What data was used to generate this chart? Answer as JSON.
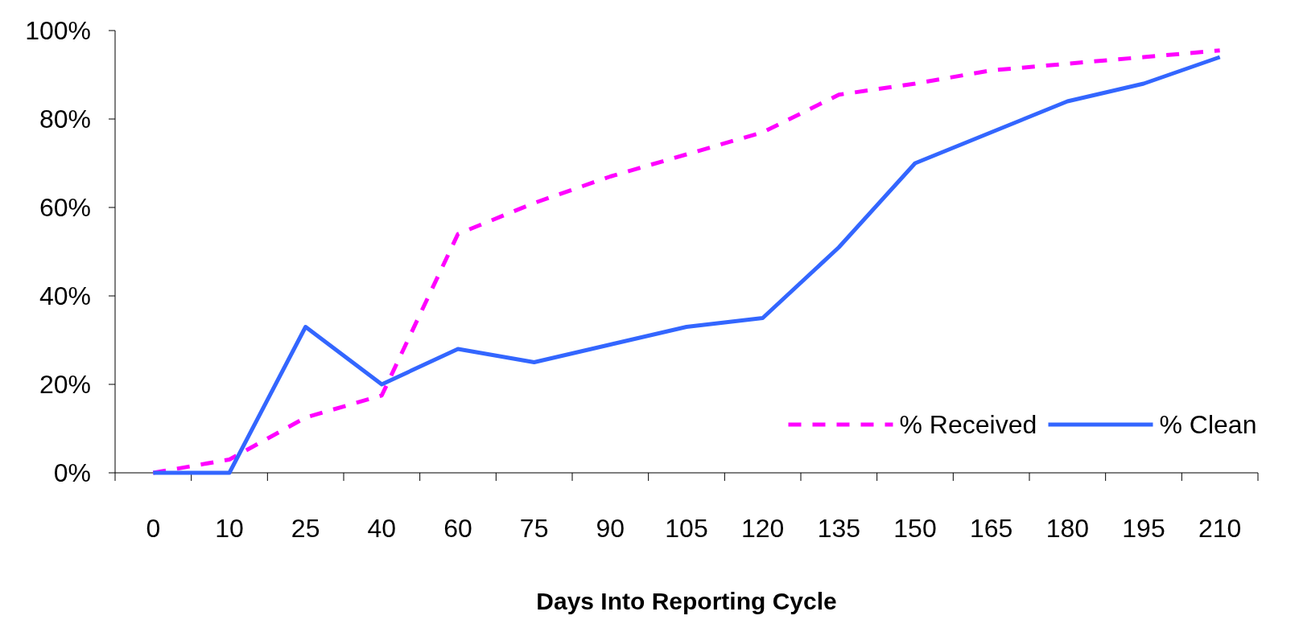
{
  "chart_data": {
    "type": "line",
    "xlabel": "Days Into Reporting Cycle",
    "categories": [
      "0",
      "10",
      "25",
      "40",
      "60",
      "75",
      "90",
      "105",
      "120",
      "135",
      "150",
      "165",
      "180",
      "195",
      "210"
    ],
    "series": [
      {
        "name": "% Received",
        "color": "#ff00ff",
        "line_style": "dashed",
        "values": [
          0,
          3,
          12.5,
          17.5,
          54,
          61,
          67,
          72,
          77,
          85.5,
          88,
          91,
          92.5,
          94,
          95.5
        ]
      },
      {
        "name": "% Clean",
        "color": "#3366ff",
        "line_style": "solid",
        "values": [
          0,
          0,
          33,
          20,
          28,
          25,
          29,
          33,
          35,
          51,
          70,
          77,
          84,
          88,
          94
        ]
      }
    ],
    "ylim": [
      0,
      100
    ],
    "yticks": [
      {
        "value": 0,
        "label": "0%"
      },
      {
        "value": 20,
        "label": "20%"
      },
      {
        "value": 40,
        "label": "40%"
      },
      {
        "value": 60,
        "label": "60%"
      },
      {
        "value": 80,
        "label": "80%"
      },
      {
        "value": 100,
        "label": "100%"
      }
    ],
    "grid": false,
    "legend": "bottom right",
    "marker": "none"
  }
}
